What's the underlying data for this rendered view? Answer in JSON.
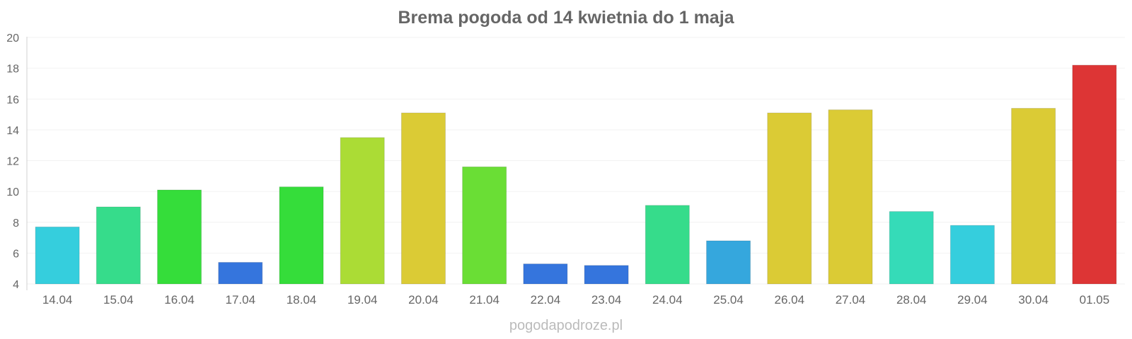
{
  "chart_data": {
    "type": "bar",
    "title": "Brema pogoda od 14 kwietnia do 1 maja",
    "xlabel": "",
    "ylabel": "",
    "ylim": [
      4,
      20
    ],
    "yticks": [
      4,
      6,
      8,
      10,
      12,
      14,
      16,
      18,
      20
    ],
    "grid": true,
    "categories": [
      "14.04",
      "15.04",
      "16.04",
      "17.04",
      "18.04",
      "19.04",
      "20.04",
      "21.04",
      "22.04",
      "23.04",
      "24.04",
      "25.04",
      "26.04",
      "27.04",
      "28.04",
      "29.04",
      "30.04",
      "01.05"
    ],
    "values": [
      7.7,
      9.0,
      10.1,
      5.4,
      10.3,
      13.5,
      15.1,
      11.6,
      5.3,
      5.2,
      9.1,
      6.8,
      15.1,
      15.3,
      8.7,
      7.8,
      15.4,
      18.2
    ],
    "colors": [
      "#35cedd",
      "#36dc8b",
      "#35dd3a",
      "#3575dd",
      "#35dd3a",
      "#abdc35",
      "#dbcb35",
      "#6ade35",
      "#3575dd",
      "#3575dd",
      "#36dc8b",
      "#35a7dd",
      "#dbcb35",
      "#dbcb35",
      "#35dbb8",
      "#35cedd",
      "#dbcb35",
      "#dd3535"
    ]
  },
  "watermark": "pogodapodroze.pl"
}
